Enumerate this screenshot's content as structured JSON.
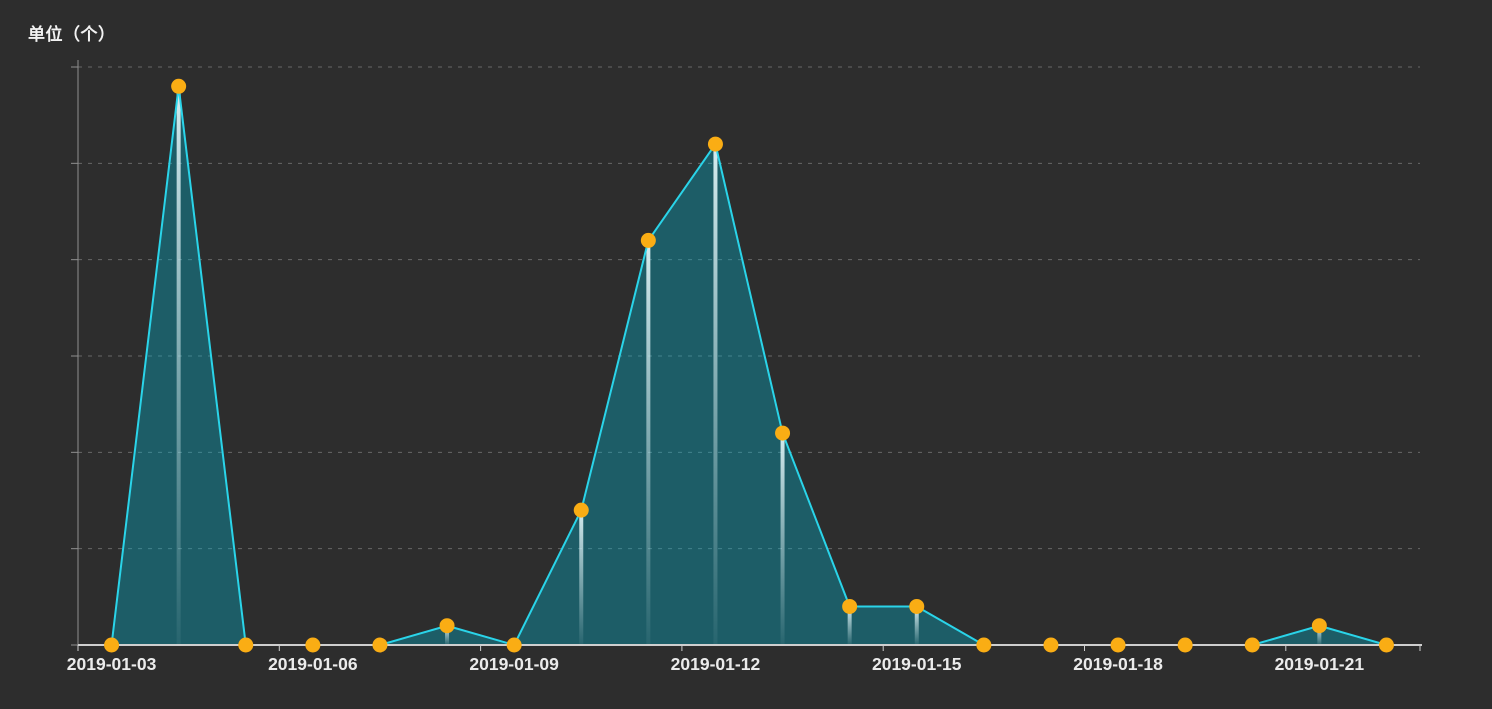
{
  "page": {
    "background_color": "#2d2d2d"
  },
  "chart_data": {
    "type": "area",
    "title": "",
    "unit_label": "单位（个）",
    "categories": [
      "2019-01-03",
      "2019-01-04",
      "2019-01-05",
      "2019-01-06",
      "2019-01-07",
      "2019-01-08",
      "2019-01-09",
      "2019-01-10",
      "2019-01-11",
      "2019-01-12",
      "2019-01-13",
      "2019-01-14",
      "2019-01-15",
      "2019-01-16",
      "2019-01-17",
      "2019-01-18",
      "2019-01-19",
      "2019-01-20",
      "2019-01-21",
      "2019-01-22"
    ],
    "values": [
      0,
      29,
      0,
      0,
      0,
      1,
      0,
      7,
      21,
      26,
      11,
      2,
      2,
      0,
      0,
      0,
      0,
      0,
      1,
      0
    ],
    "x_tick_labels": [
      "2019-01-03",
      "2019-01-06",
      "2019-01-09",
      "2019-01-12",
      "2019-01-15",
      "2019-01-18",
      "2019-01-21"
    ],
    "x_label_interval": 3,
    "ylim": [
      0,
      30
    ],
    "y_gridline_step": 5,
    "y_tick_labels_visible": false,
    "grid": true,
    "grid_style": "dashed",
    "legend": "none",
    "colors": {
      "background": "#2d2d2d",
      "line": "#2ad4e9",
      "area_fill": "rgba(0,182,212,0.35)",
      "marker_fill": "#faad14",
      "drop_line_top": "#eafcff",
      "gridline": "rgba(255,255,255,0.28)",
      "x_axis_line": "#cfcfcf",
      "y_axis_line": "#8f8f8f",
      "x_label_color": "#ebebeb",
      "unit_label_color": "#f2f2f2"
    }
  }
}
